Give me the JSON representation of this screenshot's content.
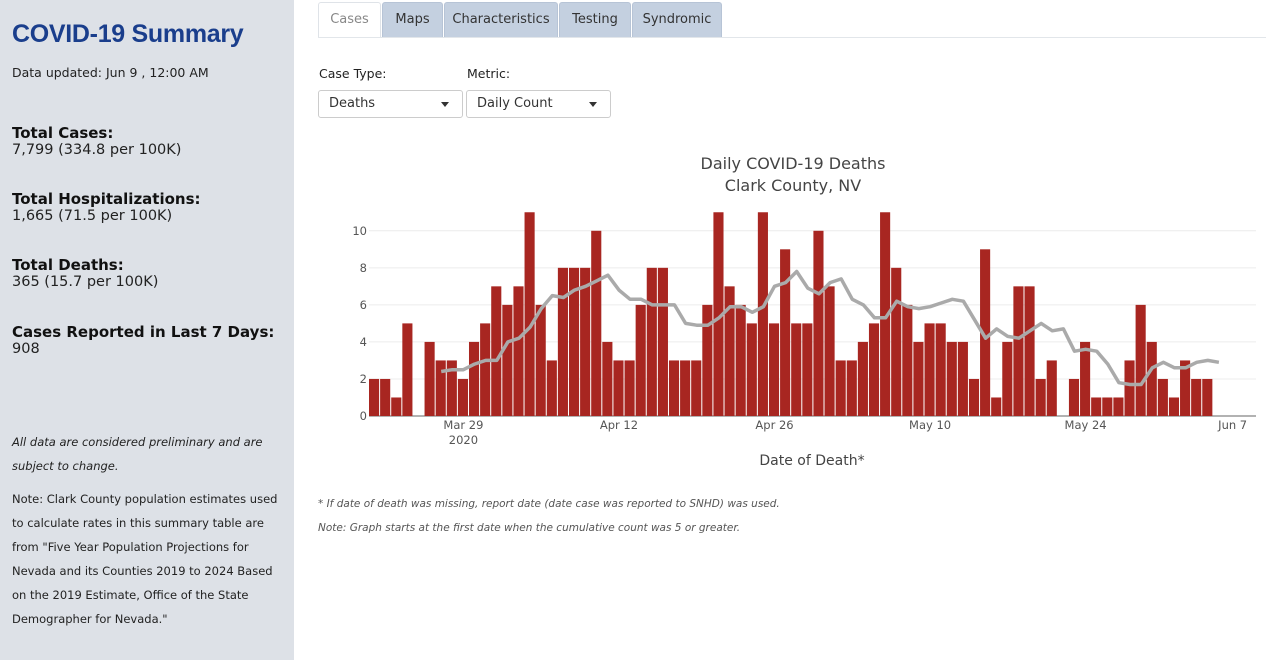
{
  "sidebar": {
    "title": "COVID-19 Summary",
    "updated": "Data updated: Jun 9 , 12:00 AM",
    "stats": [
      {
        "label": "Total Cases:",
        "value": "7,799 (334.8 per 100K)"
      },
      {
        "label": "Total Hospitalizations:",
        "value": "1,665 (71.5 per 100K)"
      },
      {
        "label": "Total Deaths:",
        "value": "365 (15.7 per 100K)"
      },
      {
        "label": "Cases Reported in Last 7 Days:",
        "value": "908"
      }
    ],
    "disclaimer": "All data are considered preliminary and are subject to change.",
    "population_note": "Note: Clark County population estimates used to calculate rates in this summary table are from \"Five Year Population Projections for Nevada and its Counties 2019 to 2024 Based on the 2019 Estimate, Office of the State Demographer for Nevada.\""
  },
  "tabs": [
    "Cases",
    "Maps",
    "Characteristics",
    "Testing",
    "Syndromic"
  ],
  "active_tab": "Cases",
  "controls": {
    "case_type_label": "Case Type:",
    "case_type_value": "Deaths",
    "metric_label": "Metric:",
    "metric_value": "Daily Count"
  },
  "footnotes": [
    "* If date of death was missing, report date (date case was reported to SNHD) was used.",
    "Note: Graph starts at the first date when the cumulative count was 5 or greater."
  ],
  "colors": {
    "bar": "#a82621",
    "line": "#aaaaaa",
    "title": "#1a3e8c"
  },
  "chart_data": {
    "type": "bar",
    "title": "Daily COVID-19 Deaths",
    "subtitle": "Clark County, NV",
    "xlabel": "Date of Death*",
    "ylabel": "",
    "ylim": [
      0,
      11.5
    ],
    "yticks": [
      0,
      2,
      4,
      6,
      8,
      10
    ],
    "start_date": "2020-03-21",
    "end_date": "2020-06-07",
    "xticks": [
      {
        "label": "Mar 29",
        "sub": "2020",
        "day": 8
      },
      {
        "label": "Apr 12",
        "day": 22
      },
      {
        "label": "Apr 26",
        "day": 36
      },
      {
        "label": "May 10",
        "day": 50
      },
      {
        "label": "May 24",
        "day": 64
      },
      {
        "label": "Jun 7",
        "day": 78
      }
    ],
    "series": [
      {
        "name": "Daily Deaths",
        "type": "bar",
        "values": [
          2,
          2,
          1,
          5,
          0,
          4,
          3,
          3,
          2,
          4,
          5,
          7,
          6,
          7,
          11,
          6,
          3,
          8,
          8,
          8,
          10,
          4,
          3,
          3,
          6,
          8,
          8,
          3,
          3,
          3,
          6,
          11,
          7,
          6,
          5,
          11,
          5,
          9,
          5,
          5,
          10,
          7,
          3,
          3,
          4,
          5,
          11,
          8,
          6,
          4,
          5,
          5,
          4,
          4,
          2,
          9,
          1,
          4,
          7,
          7,
          2,
          3,
          0,
          2,
          4,
          1,
          1,
          1,
          3,
          6,
          4,
          2,
          1,
          3,
          2,
          2
        ]
      },
      {
        "name": "7-Day Average",
        "type": "line",
        "start_day": 6,
        "values": [
          2.4,
          2.5,
          2.5,
          2.8,
          3.0,
          3.0,
          4.0,
          4.2,
          4.8,
          5.8,
          6.5,
          6.4,
          6.8,
          7.0,
          7.3,
          7.6,
          6.8,
          6.3,
          6.3,
          6.0,
          6.0,
          6.0,
          5.0,
          4.9,
          4.9,
          5.3,
          5.9,
          5.9,
          5.6,
          5.9,
          7.0,
          7.2,
          7.8,
          6.9,
          6.6,
          7.2,
          7.4,
          6.3,
          6.0,
          5.3,
          5.3,
          6.2,
          5.9,
          5.8,
          5.9,
          6.1,
          6.3,
          6.2,
          5.2,
          4.2,
          4.7,
          4.3,
          4.2,
          4.6,
          5.0,
          4.6,
          4.7,
          3.5,
          3.6,
          3.5,
          2.8,
          1.8,
          1.7,
          1.7,
          2.6,
          2.9,
          2.6,
          2.6,
          2.9,
          3.0,
          2.9
        ]
      }
    ]
  }
}
